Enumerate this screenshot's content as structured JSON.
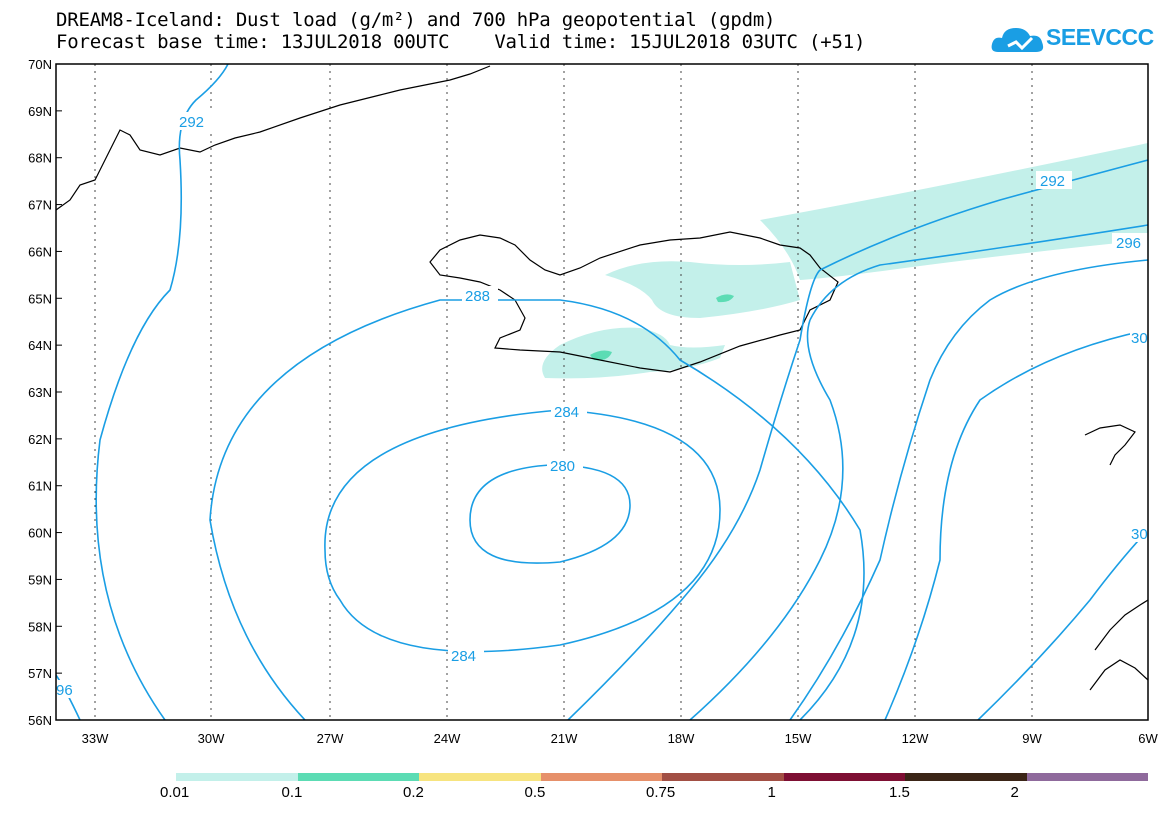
{
  "header": {
    "title_line1": "DREAM8-Iceland: Dust load (g/m²) and 700 hPa geopotential (gpdm)",
    "title_line2": "Forecast base time: 13JUL2018 00UTC    Valid time: 15JUL2018 03UTC (+51)",
    "logo_text": "SEEVCCC"
  },
  "map": {
    "lat_labels": [
      "70N",
      "69N",
      "68N",
      "67N",
      "66N",
      "65N",
      "64N",
      "63N",
      "62N",
      "61N",
      "60N",
      "59N",
      "58N",
      "57N",
      "56N"
    ],
    "lon_labels": [
      "33W",
      "30W",
      "27W",
      "24W",
      "21W",
      "18W",
      "15W",
      "12W",
      "9W",
      "6W"
    ],
    "contour_labels": [
      "292",
      "292",
      "296",
      "288",
      "284",
      "280",
      "284",
      "96",
      "30",
      "30"
    ],
    "contour_color": "#1a9ee4",
    "dust_color_low": "#c3f0ea",
    "dust_color_mid": "#5cdcb4"
  },
  "legend": {
    "labels": [
      "0.01",
      "0.1",
      "0.2",
      "0.5",
      "0.75",
      "1",
      "1.5",
      "2"
    ],
    "colors": [
      "#c3f0ea",
      "#5cdcb4",
      "#f7e47f",
      "#e6906a",
      "#a24f44",
      "#7e0f33",
      "#3b2517",
      "#8f6a9c"
    ]
  }
}
